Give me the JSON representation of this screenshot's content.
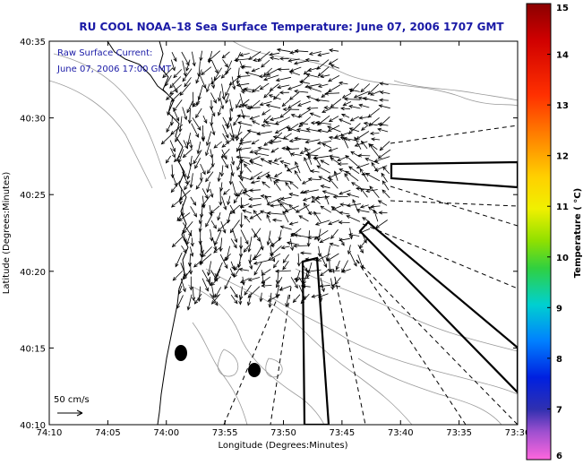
{
  "title": "RU COOL  NOAA–18  Sea Surface Temperature:  June 07, 2006 1707 GMT",
  "annotation": {
    "line1": "Raw Surface Current:",
    "line2": "June 07, 2006 17:00 GMT"
  },
  "scale_label": "50 cm/s",
  "x_axis": {
    "label": "Longitude (Degrees:Minutes)",
    "ticks": [
      "74:10",
      "74:05",
      "74:00",
      "73:55",
      "73:50",
      "73:45",
      "73:40",
      "73:35",
      "73:30"
    ]
  },
  "y_axis": {
    "label": "Latitude (Degrees:Minutes)",
    "ticks": [
      "40:35",
      "40:30",
      "40:25",
      "40:20",
      "40:15",
      "40:10"
    ]
  },
  "colorbar": {
    "label": "Temperature ( °C)",
    "ticks": [
      "15",
      "14",
      "13",
      "12",
      "11",
      "10",
      "9",
      "8",
      "7",
      "6"
    ],
    "min": 6,
    "max": 15,
    "colors": [
      "#8b0000",
      "#d00000",
      "#ff3000",
      "#ff7a00",
      "#ffc800",
      "#f4f400",
      "#9be600",
      "#2cd24a",
      "#00c8c8",
      "#00a0ff",
      "#0050ff",
      "#0000c8",
      "#6a40c8",
      "#c060e0",
      "#ff66dd"
    ]
  }
}
